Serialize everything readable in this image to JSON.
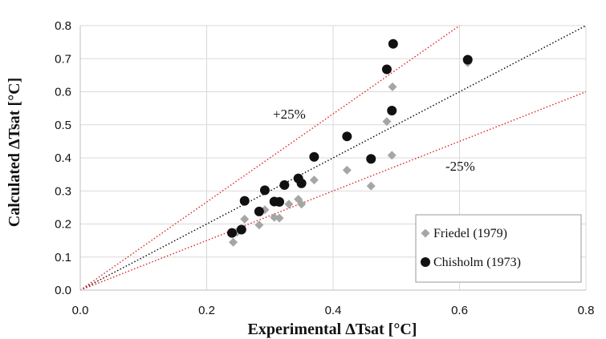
{
  "chart_data": {
    "type": "scatter",
    "xlabel": "Experimental ΔTsat [°C]",
    "ylabel": "Calculated ΔTsat [°C]",
    "xlim": [
      0,
      0.8
    ],
    "ylim": [
      0,
      0.8
    ],
    "x_ticks": [
      "0.0",
      "0.2",
      "0.4",
      "0.6",
      "0.8"
    ],
    "y_ticks": [
      "0.0",
      "0.1",
      "0.2",
      "0.3",
      "0.4",
      "0.5",
      "0.6",
      "0.7",
      "0.8"
    ],
    "grid": true,
    "legend_position": "bottom-right",
    "series": [
      {
        "name": "Friedel (1979)",
        "marker": "diamond",
        "color": "#a6a6a6",
        "points": [
          [
            0.242,
            0.145
          ],
          [
            0.248,
            0.175
          ],
          [
            0.26,
            0.215
          ],
          [
            0.283,
            0.197
          ],
          [
            0.292,
            0.243
          ],
          [
            0.307,
            0.22
          ],
          [
            0.315,
            0.218
          ],
          [
            0.33,
            0.26
          ],
          [
            0.345,
            0.275
          ],
          [
            0.35,
            0.26
          ],
          [
            0.37,
            0.333
          ],
          [
            0.422,
            0.363
          ],
          [
            0.46,
            0.315
          ],
          [
            0.485,
            0.51
          ],
          [
            0.493,
            0.408
          ],
          [
            0.494,
            0.615
          ],
          [
            0.613,
            0.688
          ]
        ]
      },
      {
        "name": "Chisholm (1973)",
        "marker": "circle",
        "color": "#111111",
        "points": [
          [
            0.24,
            0.173
          ],
          [
            0.255,
            0.183
          ],
          [
            0.26,
            0.27
          ],
          [
            0.283,
            0.238
          ],
          [
            0.292,
            0.302
          ],
          [
            0.307,
            0.268
          ],
          [
            0.315,
            0.267
          ],
          [
            0.323,
            0.318
          ],
          [
            0.345,
            0.338
          ],
          [
            0.35,
            0.323
          ],
          [
            0.37,
            0.403
          ],
          [
            0.422,
            0.465
          ],
          [
            0.46,
            0.397
          ],
          [
            0.485,
            0.668
          ],
          [
            0.493,
            0.543
          ],
          [
            0.495,
            0.745
          ],
          [
            0.613,
            0.697
          ]
        ]
      }
    ],
    "reference_lines": [
      {
        "label": "",
        "slope": 1.0,
        "style": "dotted",
        "color": "#000000"
      },
      {
        "label": "+25%",
        "slope": 1.333,
        "style": "dotted",
        "color": "#e02020"
      },
      {
        "label": "-25%",
        "slope": 0.75,
        "style": "dotted",
        "color": "#e02020"
      }
    ]
  }
}
